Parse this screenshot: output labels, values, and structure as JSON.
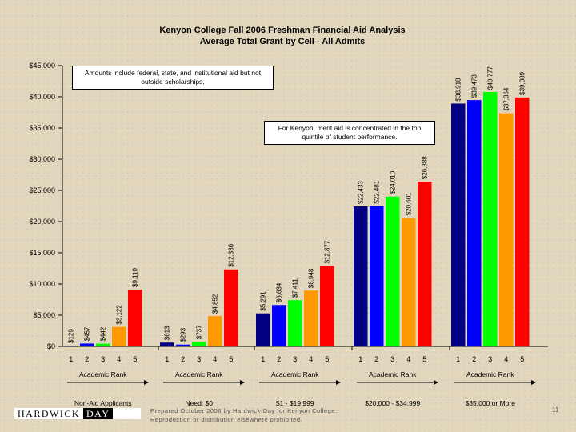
{
  "chart_data": {
    "type": "bar",
    "title": "Kenyon College Fall 2006 Freshman Financial Aid Analysis",
    "subtitle": "Average Total Grant by Cell - All Admits",
    "ylim": [
      0,
      45000
    ],
    "yticks": [
      "$0",
      "$5,000",
      "$10,000",
      "$15,000",
      "$20,000",
      "$25,000",
      "$30,000",
      "$35,000",
      "$40,000",
      "$45,000"
    ],
    "rank_colors": [
      "#000080",
      "#0000ff",
      "#00ff00",
      "#ff9900",
      "#ff0000"
    ],
    "groups": [
      {
        "name": "Non-Aid Applicants",
        "axis_label": "Academic Rank",
        "ranks": [
          "1",
          "2",
          "3",
          "4",
          "5"
        ],
        "values": [
          129,
          457,
          442,
          3122,
          9110
        ],
        "labels": [
          "$129",
          "$457",
          "$442",
          "$3,122",
          "$9,110"
        ]
      },
      {
        "name": "Need: $0",
        "axis_label": "Academic Rank",
        "ranks": [
          "1",
          "2",
          "3",
          "4",
          "5"
        ],
        "values": [
          613,
          293,
          737,
          4852,
          12336
        ],
        "labels": [
          "$613",
          "$293",
          "$737",
          "$4,852",
          "$12,336"
        ]
      },
      {
        "name": "$1 - $19,999",
        "axis_label": "Academic Rank",
        "ranks": [
          "1",
          "2",
          "3",
          "4",
          "5"
        ],
        "values": [
          5291,
          6634,
          7411,
          8948,
          12877
        ],
        "labels": [
          "$5,291",
          "$6,634",
          "$7,411",
          "$8,948",
          "$12,877"
        ]
      },
      {
        "name": "$20,000 - $34,999",
        "axis_label": "Academic Rank",
        "ranks": [
          "1",
          "2",
          "3",
          "4",
          "5"
        ],
        "values": [
          22433,
          22481,
          24010,
          20601,
          26388
        ],
        "labels": [
          "$22,433",
          "$22,481",
          "$24,010",
          "$20,601",
          "$26,388"
        ]
      },
      {
        "name": "$35,000 or More",
        "axis_label": "Academic Rank",
        "ranks": [
          "1",
          "2",
          "3",
          "4",
          "5"
        ],
        "values": [
          38918,
          39473,
          40777,
          37364,
          39889
        ],
        "labels": [
          "$38,918",
          "$39,473",
          "$40,777",
          "$37,364",
          "$39,889"
        ]
      }
    ],
    "notes": [
      "Amounts include federal, state, and institutional aid but not outside scholarships.",
      "For Kenyon, merit aid is concentrated in the top quintile of student performance."
    ]
  },
  "footer": {
    "prepared_line1": "Prepared October 2006 by Hardwick-Day for Kenyon College.",
    "prepared_line2": "Reproduction or distribution elsewhere prohibited.",
    "logo_left": "HARDWICK",
    "logo_right": "DAY",
    "page_number": "11"
  }
}
